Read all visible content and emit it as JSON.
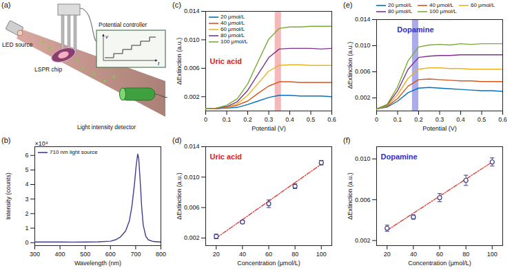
{
  "diagram": {
    "label": "(a)",
    "texts": {
      "source": "LED source",
      "chip": "LSPR chip",
      "controller": "Potential controller",
      "detector": "Light intensity detector",
      "controller_axis_y": "v",
      "controller_axis_x": "t"
    }
  },
  "chart_data": [
    {
      "label": "(b)",
      "type": "line",
      "x_label": "Wavelength (nm)",
      "y_label": "Intensity (counts)",
      "y_multiplier": "×10⁴",
      "x": [
        300,
        350,
        400,
        450,
        500,
        550,
        600,
        620,
        640,
        660,
        675,
        685,
        695,
        702,
        708,
        712,
        718,
        724,
        730,
        740,
        750,
        770,
        800
      ],
      "series": [
        {
          "name": "710 nm light source",
          "color": "#3c3c96",
          "line_style": "solid",
          "values": [
            0.05,
            0.05,
            0.05,
            0.04,
            0.05,
            0.06,
            0.1,
            0.2,
            0.4,
            0.8,
            1.5,
            2.5,
            4.0,
            5.3,
            6.1,
            5.8,
            4.2,
            2.4,
            1.2,
            0.45,
            0.2,
            0.08,
            0.05
          ]
        }
      ],
      "xlim": [
        300,
        800
      ],
      "ylim": [
        -0.2,
        6.6
      ],
      "xticks": [
        300,
        400,
        500,
        600,
        700,
        800
      ],
      "yticks": [
        0,
        1,
        2,
        3,
        4,
        5,
        6
      ],
      "grid": false,
      "legend": "top-left"
    },
    {
      "label": "(c)",
      "type": "line",
      "x_label": "Potential (V)",
      "y_label": "ΔExtinction (a.u.)",
      "x": [
        0,
        0.05,
        0.1,
        0.15,
        0.2,
        0.25,
        0.3,
        0.35,
        0.4,
        0.45,
        0.5,
        0.55,
        0.6
      ],
      "series": [
        {
          "name": "20 μmol/L",
          "color": "#0072bd",
          "line_style": "solid",
          "values": [
            0.0003,
            0.0003,
            0.0004,
            0.0005,
            0.0009,
            0.0014,
            0.0019,
            0.0022,
            0.0022,
            0.0021,
            0.0021,
            0.0021,
            0.002
          ]
        },
        {
          "name": "40 μmol/L",
          "color": "#d95319",
          "line_style": "solid",
          "values": [
            0.0003,
            0.0003,
            0.0005,
            0.0008,
            0.0014,
            0.0025,
            0.0035,
            0.0041,
            0.0041,
            0.004,
            0.004,
            0.004,
            0.004
          ]
        },
        {
          "name": "60 μmol/L",
          "color": "#edb120",
          "line_style": "solid",
          "values": [
            0.0003,
            0.0004,
            0.0005,
            0.001,
            0.0022,
            0.0039,
            0.0056,
            0.0064,
            0.0065,
            0.0065,
            0.0064,
            0.0064,
            0.0064
          ]
        },
        {
          "name": "80 μmol/L",
          "color": "#7e2f8e",
          "line_style": "solid",
          "values": [
            0.0003,
            0.0004,
            0.0006,
            0.0013,
            0.0029,
            0.0052,
            0.0075,
            0.0087,
            0.0088,
            0.0088,
            0.0088,
            0.0087,
            0.0088
          ]
        },
        {
          "name": "100 μmol/L",
          "color": "#77ac30",
          "line_style": "solid",
          "values": [
            0.0003,
            0.0004,
            0.0008,
            0.0017,
            0.0038,
            0.007,
            0.0101,
            0.0116,
            0.0118,
            0.0118,
            0.0119,
            0.0119,
            0.0119
          ]
        }
      ],
      "highlight": {
        "x": [
          0.33,
          0.36
        ],
        "color": "#f3a0a0"
      },
      "annotations": [
        {
          "text": "Uric acid",
          "color": "#e02020"
        }
      ],
      "xlim": [
        0,
        0.6
      ],
      "ylim": [
        0,
        0.014
      ],
      "xticks": [
        0,
        0.1,
        0.2,
        0.3,
        0.4,
        0.5,
        0.6
      ],
      "yticks": [
        0.002,
        0.006,
        {
          "value": 0.01,
          "label": "0.010"
        },
        0.014
      ],
      "grid": false,
      "legend": "top-left"
    },
    {
      "label": "(d)",
      "type": "scatter",
      "x_label": "Concentration (μmol/L)",
      "y_label": "ΔExtinction (a.u.)",
      "x": [
        20,
        40,
        60,
        80,
        100
      ],
      "series": [
        {
          "type": "scatter",
          "color": "#3a3a8c",
          "marker": "circle",
          "values": [
            0.0022,
            0.0041,
            0.0065,
            0.0088,
            0.0119
          ],
          "errors": [
            0.0003,
            0.0002,
            0.0005,
            0.0003,
            0.0003
          ]
        },
        {
          "type": "line",
          "color": "#e0403a",
          "line_style": "dashdot",
          "x": [
            20,
            100
          ],
          "values": [
            0.002,
            0.0117
          ]
        }
      ],
      "annotations": [
        {
          "text": "Uric acid",
          "color": "#e02020"
        }
      ],
      "xlim": [
        12,
        108
      ],
      "ylim": [
        0.001,
        0.014
      ],
      "xticks": [
        20,
        40,
        60,
        80,
        100
      ],
      "yticks": [
        0.002,
        0.006,
        {
          "value": 0.01,
          "label": "0.010"
        },
        0.014
      ],
      "grid": false
    },
    {
      "label": "(e)",
      "type": "line",
      "x_label": "Potential (V)",
      "y_label": "ΔExtinction (a.u.)",
      "x": [
        0,
        0.05,
        0.1,
        0.15,
        0.2,
        0.25,
        0.3,
        0.35,
        0.4,
        0.45,
        0.5,
        0.55,
        0.6
      ],
      "series": [
        {
          "name": "20 μmol/L",
          "color": "#0072bd",
          "line_style": "solid",
          "values": [
            0.0003,
            0.0006,
            0.0015,
            0.0028,
            0.0035,
            0.0036,
            0.0035,
            0.0034,
            0.0033,
            0.0032,
            0.0031,
            0.0031,
            0.003
          ]
        },
        {
          "name": "40 μmol/L",
          "color": "#d95319",
          "line_style": "solid",
          "values": [
            0.0003,
            0.0007,
            0.0019,
            0.0038,
            0.0048,
            0.0049,
            0.0048,
            0.0047,
            0.0046,
            0.0046,
            0.0045,
            0.0045,
            0.0045
          ]
        },
        {
          "name": "60 μmol/L",
          "color": "#edb120",
          "line_style": "solid",
          "values": [
            0.0003,
            0.0008,
            0.0025,
            0.005,
            0.0064,
            0.0066,
            0.0066,
            0.0065,
            0.0065,
            0.0064,
            0.0064,
            0.0064,
            0.0064
          ]
        },
        {
          "name": "80 μmol/L",
          "color": "#7e2f8e",
          "line_style": "solid",
          "values": [
            0.0003,
            0.0009,
            0.0031,
            0.0064,
            0.0082,
            0.0084,
            0.0085,
            0.0085,
            0.0086,
            0.0086,
            0.0086,
            0.0086,
            0.0086
          ]
        },
        {
          "name": "100 μmol/L",
          "color": "#77ac30",
          "line_style": "solid",
          "values": [
            0.0003,
            0.001,
            0.0037,
            0.0077,
            0.0098,
            0.0101,
            0.0102,
            0.0101,
            0.0103,
            0.0102,
            0.0103,
            0.0103,
            0.0103
          ]
        }
      ],
      "highlight": {
        "x": [
          0.17,
          0.2
        ],
        "color": "#8f8fe0"
      },
      "annotations": [
        {
          "text": "Dopamine",
          "color": "#3030c8"
        }
      ],
      "xlim": [
        0,
        0.6
      ],
      "ylim": [
        0,
        0.014
      ],
      "xticks": [
        0,
        0.1,
        0.2,
        0.3,
        0.4,
        0.5,
        0.6
      ],
      "yticks": [
        0.002,
        0.006,
        {
          "value": 0.01,
          "label": "0.010"
        },
        0.014
      ],
      "grid": false,
      "legend": "top"
    },
    {
      "label": "(f)",
      "type": "scatter",
      "x_label": "Concentration (μmol/L)",
      "y_label": "ΔExtinction (a.u.)",
      "x": [
        20,
        40,
        60,
        80,
        100
      ],
      "series": [
        {
          "type": "scatter",
          "color": "#3a3a8c",
          "marker": "circle",
          "values": [
            0.0032,
            0.0043,
            0.0062,
            0.0079,
            0.0097
          ],
          "errors": [
            0.0003,
            0.0002,
            0.0004,
            0.0005,
            0.0004
          ]
        },
        {
          "type": "line",
          "color": "#e0403a",
          "line_style": "dashdot",
          "x": [
            20,
            100
          ],
          "values": [
            0.003,
            0.0097
          ]
        }
      ],
      "annotations": [
        {
          "text": "Dopamine",
          "color": "#3030c8"
        }
      ],
      "xlim": [
        12,
        108
      ],
      "ylim": [
        0.0015,
        0.0112
      ],
      "xticks": [
        20,
        40,
        60,
        80,
        100
      ],
      "yticks": [
        0.002,
        0.006,
        {
          "value": 0.01,
          "label": "0.010"
        }
      ],
      "grid": false
    }
  ]
}
